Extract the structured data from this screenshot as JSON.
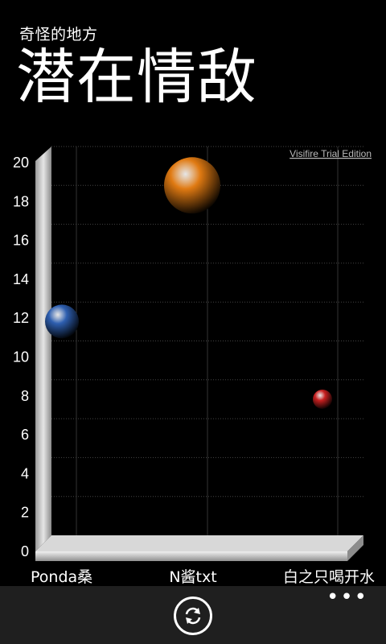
{
  "header": {
    "app_name": "奇怪的地方",
    "title": "潜在情敌"
  },
  "watermark": "Visifire Trial Edition",
  "chart_data": {
    "type": "scatter",
    "categories": [
      "Ponda桑",
      "N酱txt",
      "白之只喝开水"
    ],
    "y_ticks": [
      0,
      2,
      4,
      6,
      8,
      10,
      12,
      14,
      16,
      18,
      20
    ],
    "ylim": [
      0,
      20
    ],
    "points": [
      {
        "category": "Ponda桑",
        "y": 11,
        "size": 2,
        "color": "#2e5fb0"
      },
      {
        "category": "N酱txt",
        "y": 18,
        "size": 4,
        "color": "#e07a12"
      },
      {
        "category": "白之只喝开水",
        "y": 7,
        "size": 1,
        "color": "#c82020"
      }
    ],
    "grid": true
  },
  "appbar": {
    "refresh_icon": "refresh-icon",
    "more_label": "•••"
  }
}
